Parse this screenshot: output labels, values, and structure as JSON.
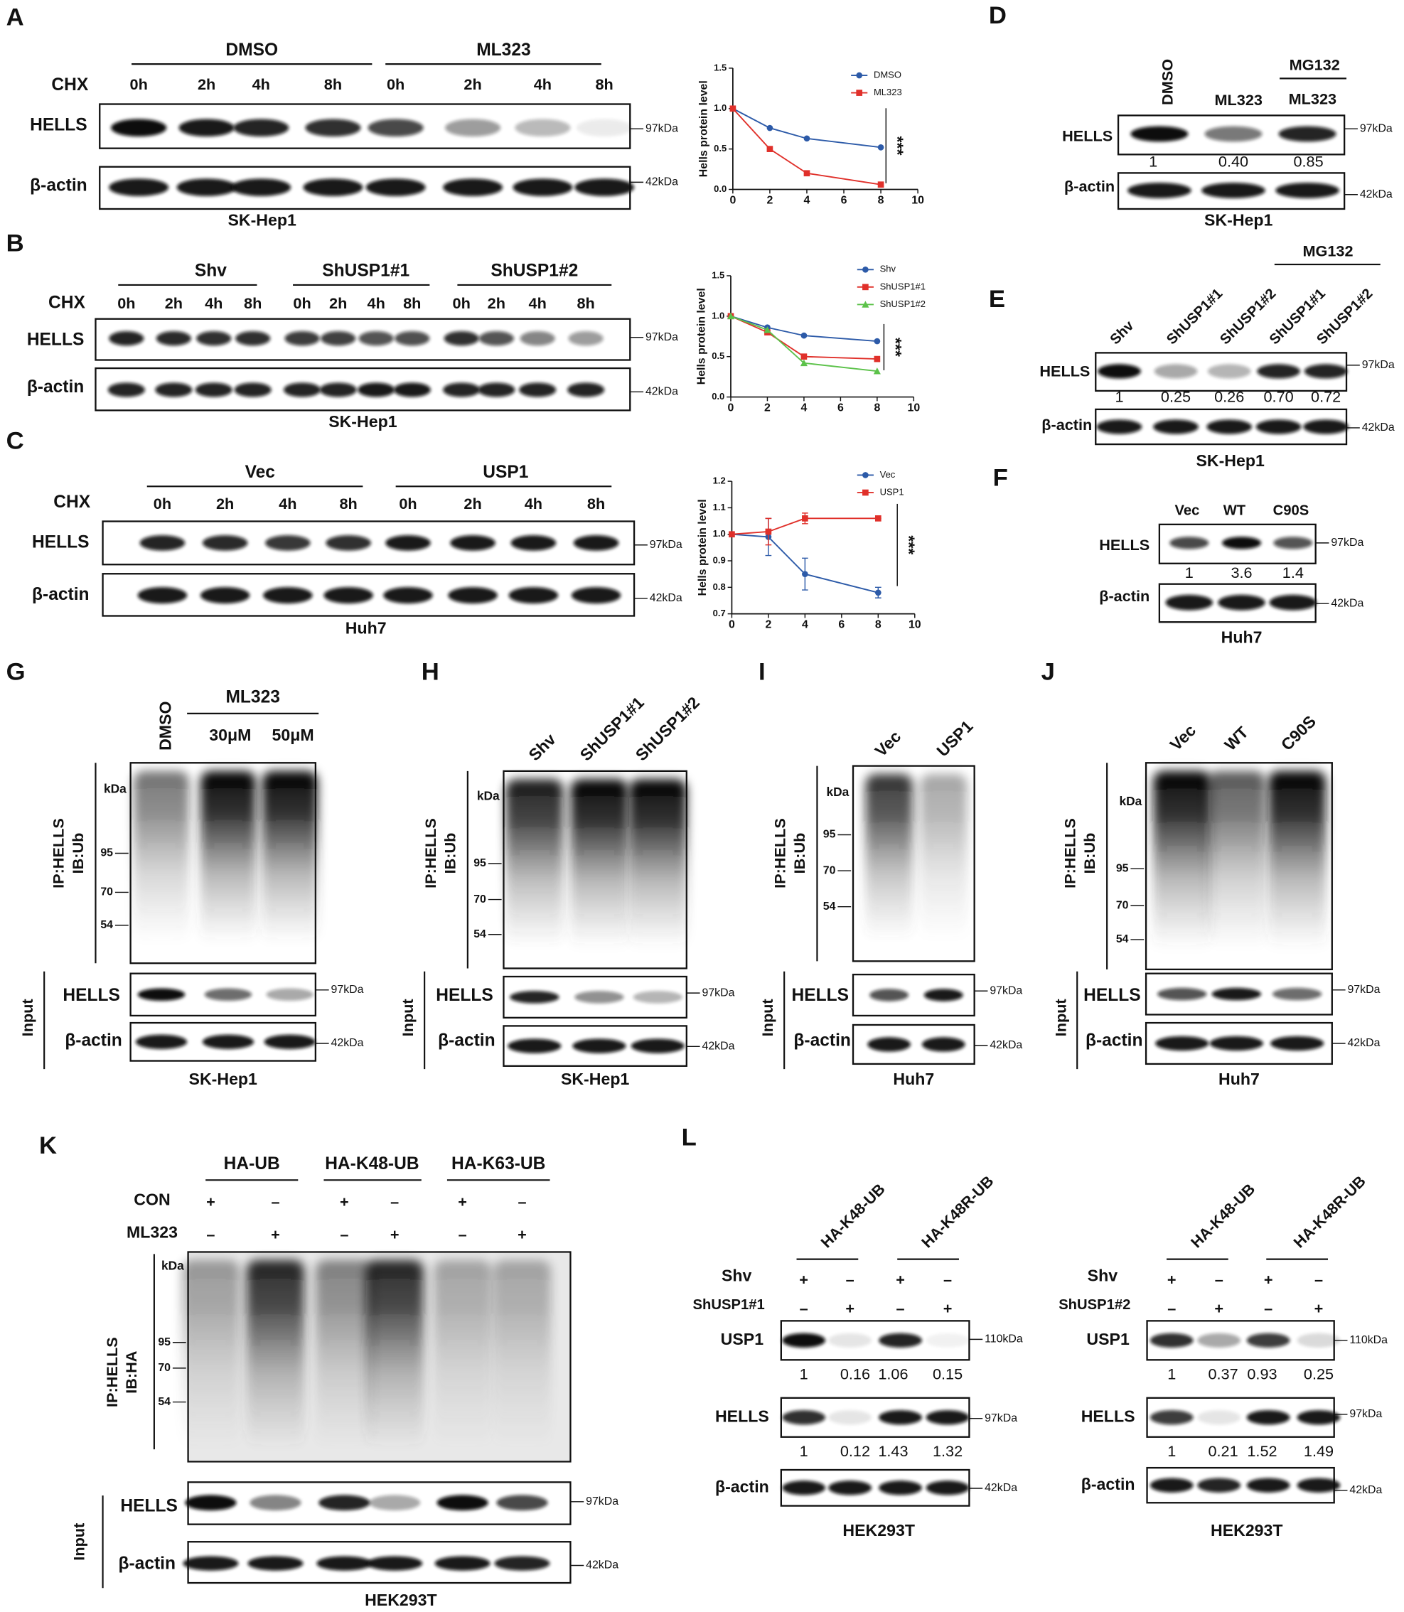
{
  "panels": {
    "A": {
      "letter": "A",
      "groups": [
        "DMSO",
        "ML323"
      ],
      "treatment": "CHX",
      "lanes": [
        "0h",
        "2h",
        "4h",
        "8h",
        "0h",
        "2h",
        "4h",
        "8h"
      ],
      "rows": [
        "HELLS",
        "β-actin"
      ],
      "markers": [
        "97kDa",
        "42kDa"
      ],
      "cell_line": "SK-Hep1",
      "chart": {
        "type": "line",
        "ylabel": "Hells protein level",
        "x": [
          0,
          2,
          4,
          8
        ],
        "xlim": [
          0,
          10
        ],
        "xticks": [
          0,
          2,
          4,
          6,
          8,
          10
        ],
        "ylim": [
          0,
          1.5
        ],
        "yticks": [
          {
            "value": 0,
            "label": "0.0"
          },
          0.5,
          {
            "value": 1,
            "label": "1.0"
          },
          1.5
        ],
        "annotation": "***",
        "series": [
          {
            "name": "DMSO",
            "color": "#2c5aa8",
            "values": [
              1,
              0.76,
              0.63,
              0.52
            ]
          },
          {
            "name": "ML323",
            "color": "#e0302a",
            "values": [
              1,
              0.5,
              0.2,
              0.06
            ]
          }
        ]
      }
    },
    "B": {
      "letter": "B",
      "groups": [
        "Shv",
        "ShUSP1#1",
        "ShUSP1#2"
      ],
      "treatment": "CHX",
      "lanes": [
        "0h",
        "2h",
        "4h",
        "8h",
        "0h",
        "2h",
        "4h",
        "8h",
        "0h",
        "2h",
        "4h",
        "8h"
      ],
      "rows": [
        "HELLS",
        "β-actin"
      ],
      "markers": [
        "97kDa",
        "42kDa"
      ],
      "cell_line": "SK-Hep1",
      "chart": {
        "type": "line",
        "ylabel": "Hells protein level",
        "x": [
          0,
          2,
          4,
          8
        ],
        "xlim": [
          0,
          10
        ],
        "xticks": [
          0,
          2,
          4,
          6,
          8,
          10
        ],
        "ylim": [
          0,
          1.5
        ],
        "yticks": [
          {
            "value": 0,
            "label": "0.0"
          },
          0.5,
          {
            "value": 1,
            "label": "1.0"
          },
          1.5
        ],
        "annotation": "***",
        "series": [
          {
            "name": "Shv",
            "color": "#2c5aa8",
            "values": [
              1,
              0.86,
              0.76,
              0.69
            ]
          },
          {
            "name": "ShUSP1#1",
            "color": "#e0302a",
            "values": [
              1,
              0.8,
              0.5,
              0.47
            ]
          },
          {
            "name": "ShUSP1#2",
            "color": "#5cc24a",
            "values": [
              1,
              0.83,
              0.42,
              0.32
            ]
          }
        ]
      }
    },
    "C": {
      "letter": "C",
      "groups": [
        "Vec",
        "USP1"
      ],
      "treatment": "CHX",
      "lanes": [
        "0h",
        "2h",
        "4h",
        "8h",
        "0h",
        "2h",
        "4h",
        "8h"
      ],
      "rows": [
        "HELLS",
        "β-actin"
      ],
      "markers": [
        "97kDa",
        "42kDa"
      ],
      "cell_line": "Huh7",
      "chart": {
        "type": "line",
        "ylabel": "Hells protein level",
        "x": [
          0,
          2,
          4,
          8
        ],
        "xlim": [
          0,
          10
        ],
        "xticks": [
          0,
          2,
          4,
          6,
          8,
          10
        ],
        "ylim": [
          0.7,
          1.2
        ],
        "yticks": [
          0.7,
          0.8,
          0.9,
          {
            "value": 1,
            "label": "1.0"
          },
          1.1,
          1.2
        ],
        "annotation": "***",
        "series": [
          {
            "name": "Vec",
            "color": "#2c5aa8",
            "values": [
              1,
              0.99,
              0.85,
              0.78
            ],
            "errors": [
              0,
              0.07,
              0.06,
              0.02
            ]
          },
          {
            "name": "USP1",
            "color": "#e0302a",
            "values": [
              1,
              1.01,
              1.06,
              1.06
            ],
            "errors": [
              0,
              0.05,
              0.02,
              0
            ]
          }
        ]
      }
    },
    "D": {
      "letter": "D",
      "lanes": [
        "DMSO",
        "ML323",
        "ML323"
      ],
      "groups": [
        "MG132"
      ],
      "rows": [
        "HELLS",
        "β-actin"
      ],
      "quants": [
        "1",
        "0.40",
        "0.85"
      ],
      "markers": [
        "97kDa",
        "42kDa"
      ],
      "cell_line": "SK-Hep1"
    },
    "E": {
      "letter": "E",
      "lanes": [
        "Shv",
        "ShUSP1#1",
        "ShUSP1#2",
        "ShUSP1#1",
        "ShUSP1#2"
      ],
      "groups": [
        "MG132"
      ],
      "rows": [
        "HELLS",
        "β-actin"
      ],
      "quants": [
        "1",
        "0.25",
        "0.26",
        "0.70",
        "0.72"
      ],
      "markers": [
        "97kDa",
        "42kDa"
      ],
      "cell_line": "SK-Hep1"
    },
    "F": {
      "letter": "F",
      "lanes": [
        "Vec",
        "WT",
        "C90S"
      ],
      "rows": [
        "HELLS",
        "β-actin"
      ],
      "quants": [
        "1",
        "3.6",
        "1.4"
      ],
      "markers": [
        "97kDa",
        "42kDa"
      ],
      "cell_line": "Huh7"
    },
    "G": {
      "letter": "G",
      "lanes": [
        "DMSO",
        "30μM",
        "50μM"
      ],
      "groups": [
        "ML323"
      ],
      "ip_label": [
        "IP:HELLS",
        "IB:Ub"
      ],
      "ladder": [
        "kDa",
        "95",
        "70",
        "54"
      ],
      "input_label": "Input",
      "rows": [
        "HELLS",
        "β-actin"
      ],
      "markers": [
        "97kDa",
        "42kDa"
      ],
      "cell_line": "SK-Hep1"
    },
    "H": {
      "letter": "H",
      "lanes": [
        "Shv",
        "ShUSP1#1",
        "ShUSP1#2"
      ],
      "ip_label": [
        "IP:HELLS",
        "IB:Ub"
      ],
      "ladder": [
        "kDa",
        "95",
        "70",
        "54"
      ],
      "input_label": "Input",
      "rows": [
        "HELLS",
        "β-actin"
      ],
      "markers": [
        "97kDa",
        "42kDa"
      ],
      "cell_line": "SK-Hep1"
    },
    "I": {
      "letter": "I",
      "lanes": [
        "Vec",
        "USP1"
      ],
      "ip_label": [
        "IP:HELLS",
        "IB:Ub"
      ],
      "ladder": [
        "kDa",
        "95",
        "70",
        "54"
      ],
      "input_label": "Input",
      "rows": [
        "HELLS",
        "β-actin"
      ],
      "markers": [
        "97kDa",
        "42kDa"
      ],
      "cell_line": "Huh7"
    },
    "J": {
      "letter": "J",
      "lanes": [
        "Vec",
        "WT",
        "C90S"
      ],
      "ip_label": [
        "IP:HELLS",
        "IB:Ub"
      ],
      "ladder": [
        "kDa",
        "95",
        "70",
        "54"
      ],
      "input_label": "Input",
      "rows": [
        "HELLS",
        "β-actin"
      ],
      "markers": [
        "97kDa",
        "42kDa"
      ],
      "cell_line": "Huh7"
    },
    "K": {
      "letter": "K",
      "groups": [
        "HA-UB",
        "HA-K48-UB",
        "HA-K63-UB"
      ],
      "conditions": [
        {
          "label": "CON",
          "signs": [
            "+",
            "–",
            "+",
            "–",
            "+",
            "–"
          ]
        },
        {
          "label": "ML323",
          "signs": [
            "–",
            "+",
            "–",
            "+",
            "–",
            "+"
          ]
        }
      ],
      "ip_label": [
        "IP:HELLS",
        "IB:HA"
      ],
      "ladder": [
        "kDa",
        "95",
        "70",
        "54"
      ],
      "input_label": "Input",
      "rows": [
        "HELLS",
        "β-actin"
      ],
      "markers": [
        "97kDa",
        "42kDa"
      ],
      "cell_line": "HEK293T"
    },
    "L": {
      "letter": "L",
      "halves": [
        {
          "groups": [
            "HA-K48-UB",
            "HA-K48R-UB"
          ],
          "conditions": [
            {
              "label": "Shv",
              "signs": [
                "+",
                "–",
                "+",
                "–"
              ]
            },
            {
              "label": "ShUSP1#1",
              "signs": [
                "–",
                "+",
                "–",
                "+"
              ]
            }
          ],
          "rows": [
            "USP1",
            "HELLS",
            "β-actin"
          ],
          "quants": [
            [
              "1",
              "0.16",
              "1.06",
              "0.15"
            ],
            [
              "1",
              "0.12",
              "1.43",
              "1.32"
            ]
          ],
          "markers": [
            "110kDa",
            "97kDa",
            "42kDa"
          ],
          "cell_line": "HEK293T"
        },
        {
          "groups": [
            "HA-K48-UB",
            "HA-K48R-UB"
          ],
          "conditions": [
            {
              "label": "Shv",
              "signs": [
                "+",
                "–",
                "+",
                "–"
              ]
            },
            {
              "label": "ShUSP1#2",
              "signs": [
                "–",
                "+",
                "–",
                "+"
              ]
            }
          ],
          "rows": [
            "USP1",
            "HELLS",
            "β-actin"
          ],
          "quants": [
            [
              "1",
              "0.37",
              "0.93",
              "0.25"
            ],
            [
              "1",
              "0.21",
              "1.52",
              "1.49"
            ]
          ],
          "markers": [
            "110kDa",
            "97kDa",
            "42kDa"
          ],
          "cell_line": "HEK293T"
        }
      ]
    }
  }
}
